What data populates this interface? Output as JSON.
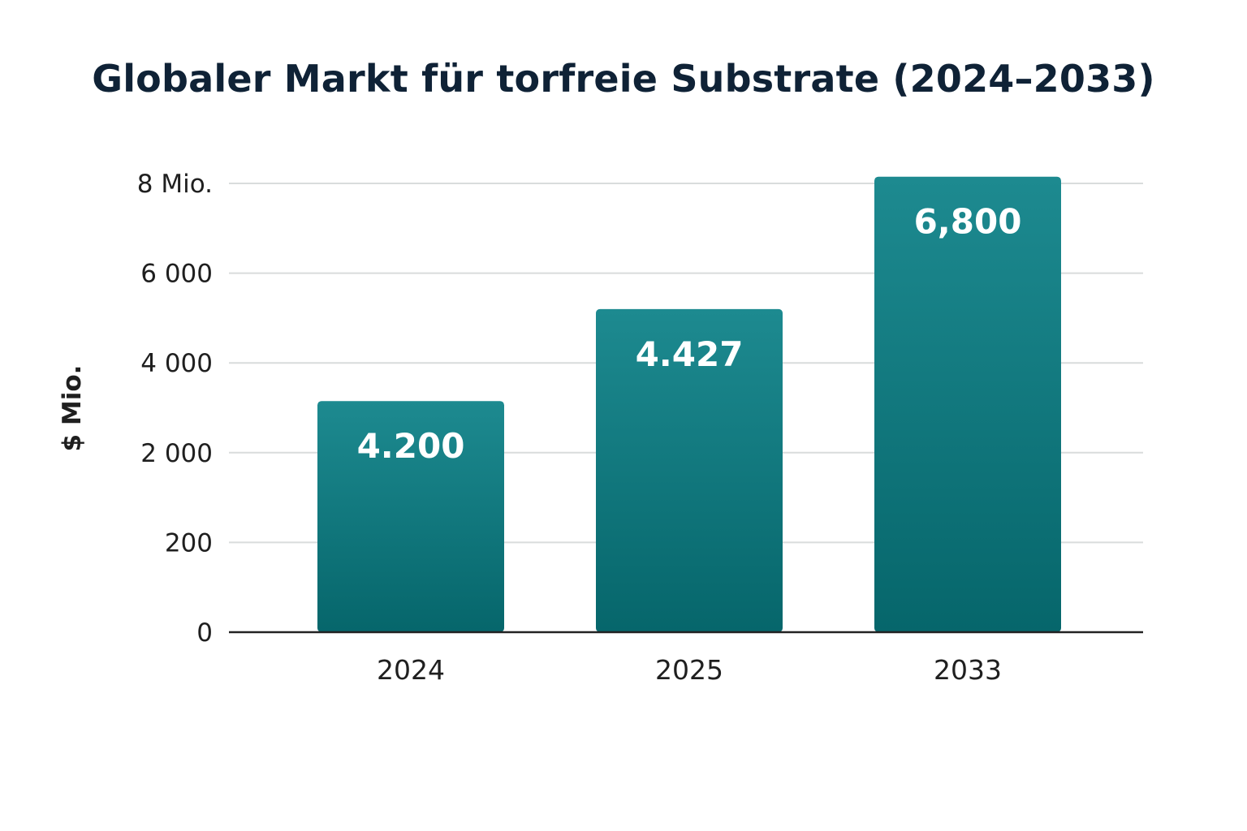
{
  "chart_data": {
    "type": "bar",
    "title": "Globaler Markt für torfreie Substrate (2024–2033)",
    "xlabel": "",
    "ylabel": "$ Mio.",
    "categories": [
      "2024",
      "2025",
      "2033"
    ],
    "values": [
      4200,
      4427,
      6800
    ],
    "value_labels": [
      "4.200",
      "4.427",
      "6,800"
    ],
    "bar_heights_fraction": [
      0.515,
      0.72,
      1.015
    ],
    "y_ticks": [
      "0",
      "200",
      "2 000",
      "4 000",
      "6 000",
      "8 Mio."
    ],
    "grid": true,
    "legend": "none",
    "colors": {
      "bar_top": "#1d8a90",
      "bar_bottom": "#06666b",
      "grid": "#d9dcdc",
      "axis": "#222222",
      "title": "#0f2236"
    }
  }
}
